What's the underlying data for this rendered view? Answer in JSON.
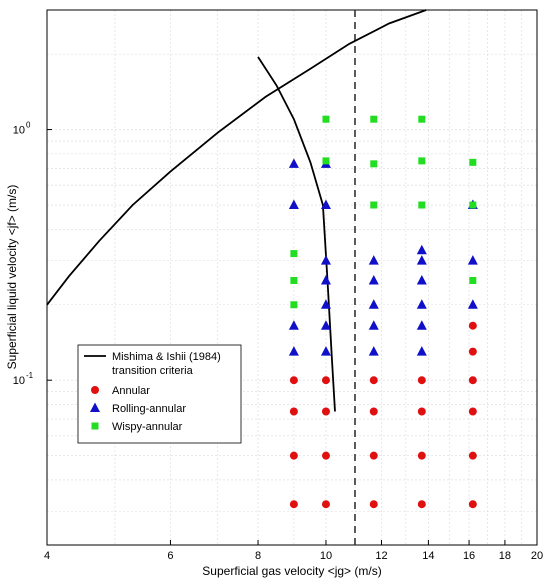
{
  "chart_data": {
    "type": "scatter",
    "xscale": "log",
    "yscale": "log",
    "xlim": [
      4,
      20
    ],
    "ylim": [
      0.022,
      3.0
    ],
    "xlabel": "Superficial gas velocity <jg> (m/s)",
    "ylabel": "Superficial liquid velocity <jf> (m/s)",
    "xticks": [
      4,
      6,
      8,
      10,
      12,
      14,
      16,
      18,
      20
    ],
    "xtick_labels": [
      "4",
      "6",
      "8",
      "10",
      "12",
      "14",
      "16",
      "18",
      "20"
    ],
    "yticks": [
      0.1,
      1.0
    ],
    "ytick_labels": [
      {
        "base": "10",
        "exp": "-1"
      },
      {
        "base": "10",
        "exp": "0"
      }
    ],
    "grid": true,
    "legend_position": "bottom-left",
    "vline": {
      "x": 11.0,
      "style": "dashed",
      "color": "#333333"
    },
    "series": [
      {
        "name": "Mishima & Ishii (1984) transition criteria",
        "kind": "line",
        "color": "#000000",
        "segments": [
          {
            "x": [
              4.0,
              4.3,
              4.75,
              5.3,
              6.0,
              7.0,
              8.2,
              9.5,
              10.8,
              12.3,
              13.9
            ],
            "y": [
              0.2,
              0.26,
              0.36,
              0.5,
              0.68,
              0.97,
              1.35,
              1.75,
              2.2,
              2.65,
              3.0
            ]
          },
          {
            "x": [
              8.0,
              8.5,
              9.0,
              9.5,
              9.9,
              10.05,
              10.2,
              10.3
            ],
            "y": [
              1.95,
              1.5,
              1.1,
              0.74,
              0.5,
              0.25,
              0.12,
              0.075
            ]
          }
        ]
      },
      {
        "name": "Annular",
        "kind": "scatter",
        "marker": "circle",
        "color": "#e01010",
        "x": [
          9,
          10,
          11.7,
          13.7,
          16.2,
          9,
          10,
          11.7,
          13.7,
          16.2,
          9,
          10,
          11.7,
          13.7,
          16.2,
          9,
          10,
          11.7,
          13.7,
          16.2,
          16.2,
          16.2
        ],
        "y": [
          0.1,
          0.1,
          0.1,
          0.1,
          0.1,
          0.075,
          0.075,
          0.075,
          0.075,
          0.075,
          0.05,
          0.05,
          0.05,
          0.05,
          0.05,
          0.032,
          0.032,
          0.032,
          0.032,
          0.032,
          0.165,
          0.13
        ]
      },
      {
        "name": "Rolling-annular",
        "kind": "scatter",
        "marker": "triangle",
        "color": "#1010c8",
        "x": [
          9,
          9,
          10,
          10,
          10,
          10,
          11.7,
          11.7,
          11.7,
          11.7,
          11.7,
          13.7,
          13.7,
          13.7,
          13.7,
          13.7,
          13.7,
          16.2,
          16.2,
          16.2,
          9,
          9,
          10,
          10,
          10
        ],
        "y": [
          0.73,
          0.5,
          0.5,
          0.3,
          0.25,
          0.2,
          0.3,
          0.25,
          0.2,
          0.165,
          0.13,
          0.33,
          0.3,
          0.25,
          0.2,
          0.165,
          0.13,
          0.3,
          0.2,
          0.5,
          0.165,
          0.13,
          0.165,
          0.13,
          0.73
        ]
      },
      {
        "name": "Wispy-annular",
        "kind": "scatter",
        "marker": "square",
        "color": "#22dd22",
        "x": [
          10,
          11.7,
          13.7,
          10,
          11.7,
          13.7,
          16.2,
          11.7,
          13.7,
          16.2,
          9,
          9,
          9,
          16.2
        ],
        "y": [
          1.1,
          1.1,
          1.1,
          0.75,
          0.73,
          0.75,
          0.74,
          0.5,
          0.5,
          0.5,
          0.32,
          0.25,
          0.2,
          0.25
        ]
      }
    ],
    "legend": {
      "entries": [
        {
          "line1": "Mishima & Ishii (1984)",
          "line2": "transition criteria",
          "marker": "line",
          "color": "#000000"
        },
        {
          "line1": "Annular",
          "line2": "",
          "marker": "circle",
          "color": "#e01010"
        },
        {
          "line1": "Rolling-annular",
          "line2": "",
          "marker": "triangle",
          "color": "#1010c8"
        },
        {
          "line1": "Wispy-annular",
          "line2": "",
          "marker": "square",
          "color": "#22dd22"
        }
      ]
    }
  }
}
